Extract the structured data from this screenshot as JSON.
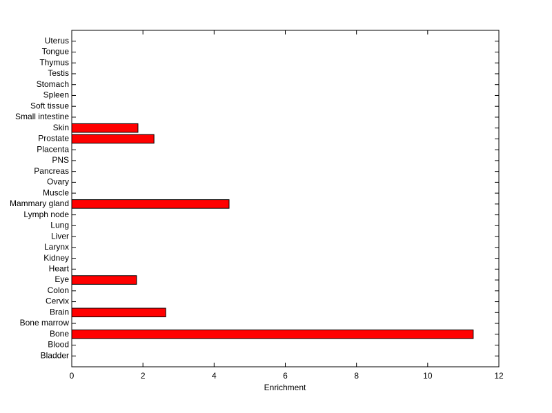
{
  "chart_data": {
    "type": "barh",
    "xlabel": "Enrichment",
    "categories": [
      "Bladder",
      "Blood",
      "Bone",
      "Bone marrow",
      "Brain",
      "Cervix",
      "Colon",
      "Eye",
      "Heart",
      "Kidney",
      "Larynx",
      "Liver",
      "Lung",
      "Lymph node",
      "Mammary gland",
      "Muscle",
      "Ovary",
      "Pancreas",
      "PNS",
      "Placenta",
      "Prostate",
      "Skin",
      "Small intestine",
      "Soft tissue",
      "Spleen",
      "Stomach",
      "Testis",
      "Thymus",
      "Tongue",
      "Uterus"
    ],
    "values": [
      0,
      0,
      11.28,
      0,
      2.64,
      0,
      0,
      1.82,
      0,
      0,
      0,
      0,
      0,
      0,
      4.42,
      0,
      0,
      0,
      0,
      0,
      2.31,
      1.86,
      0,
      0,
      0,
      0,
      0,
      0,
      0,
      0
    ],
    "color": "#ff0000",
    "xlim": [
      0,
      12
    ],
    "xticks": [
      0,
      2,
      4,
      6,
      8,
      10,
      12
    ]
  }
}
